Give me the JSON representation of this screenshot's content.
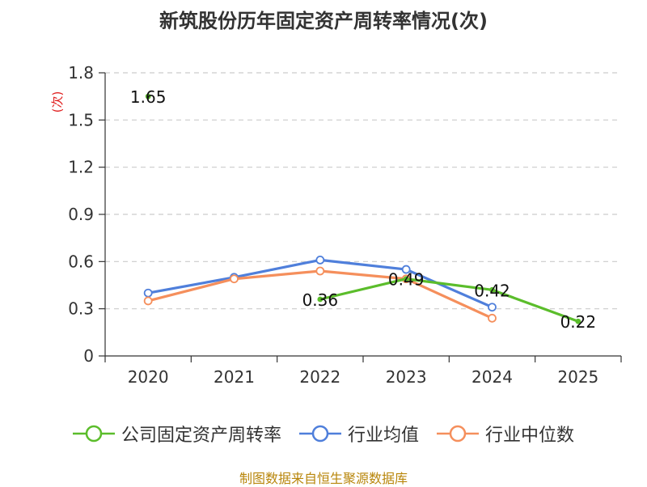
{
  "chart_data": {
    "type": "line",
    "title": "新筑股份历年固定资产周转率情况(次)",
    "ylabel": "(次)",
    "xlabel": "",
    "categories": [
      "2020",
      "2021",
      "2022",
      "2023",
      "2024",
      "2025"
    ],
    "ylim": [
      0,
      1.8
    ],
    "yticks": [
      "0",
      "0.3",
      "0.6",
      "0.9",
      "1.2",
      "1.5",
      "1.8"
    ],
    "grid": true,
    "legend_position": "bottom",
    "series": [
      {
        "name": "公司固定资产周转率",
        "color": "#5bbd2b",
        "values": [
          1.65,
          null,
          0.36,
          0.49,
          0.42,
          0.22
        ],
        "labels": [
          "1.65",
          null,
          "0.36",
          "0.49",
          "0.42",
          "0.22"
        ]
      },
      {
        "name": "行业均值",
        "color": "#4f7fdb",
        "values": [
          0.4,
          0.5,
          0.61,
          0.55,
          0.31,
          null
        ]
      },
      {
        "name": "行业中位数",
        "color": "#f58f5c",
        "values": [
          0.35,
          0.49,
          0.54,
          0.49,
          0.24,
          null
        ]
      }
    ]
  },
  "source_note": "制图数据来自恒生聚源数据库"
}
